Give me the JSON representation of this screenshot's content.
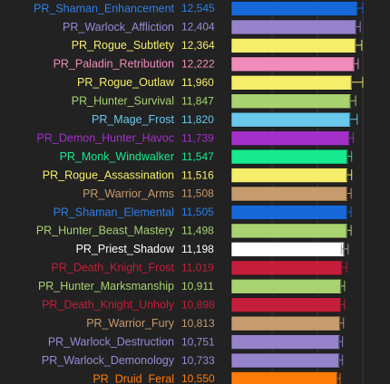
{
  "chart_data": {
    "type": "bar",
    "orientation": "horizontal",
    "grid": true,
    "title": "",
    "xlabel": "",
    "ylabel": "",
    "xlim": [
      0,
      13000
    ],
    "categories": [
      "PR_Shaman_Enhancement",
      "PR_Warlock_Affliction",
      "PR_Rogue_Subtlety",
      "PR_Paladin_Retribution",
      "PR_Rogue_Outlaw",
      "PR_Hunter_Survival",
      "PR_Mage_Frost",
      "PR_Demon_Hunter_Havoc",
      "PR_Monk_Windwalker",
      "PR_Rogue_Assassination",
      "PR_Warrior_Arms",
      "PR_Shaman_Elemental",
      "PR_Hunter_Beast_Mastery",
      "PR_Priest_Shadow",
      "PR_Death_Knight_Frost",
      "PR_Hunter_Marksmanship",
      "PR_Death_Knight_Unholy",
      "PR_Warrior_Fury",
      "PR_Warlock_Destruction",
      "PR_Warlock_Demonology",
      "PR_Druid_Feral"
    ],
    "value_labels": [
      "12,545",
      "12,404",
      "12,364",
      "12,222",
      "11,960",
      "11,847",
      "11,820",
      "11,739",
      "11,547",
      "11,516",
      "11,508",
      "11,505",
      "11,498",
      "11,198",
      "11,019",
      "10,911",
      "10,898",
      "10,813",
      "10,751",
      "10,733",
      "10,550"
    ],
    "values": [
      12545,
      12404,
      12364,
      12222,
      11960,
      11847,
      11820,
      11739,
      11547,
      11516,
      11508,
      11505,
      11498,
      11198,
      11019,
      10911,
      10898,
      10813,
      10751,
      10733,
      10550
    ],
    "error_low": [
      12000,
      11880,
      11820,
      11740,
      11380,
      11380,
      11300,
      11390,
      11250,
      11220,
      11250,
      11250,
      11280,
      10880,
      10720,
      10600,
      10660,
      10580,
      10500,
      10480,
      10280
    ],
    "error_high": [
      13000,
      12750,
      12900,
      12550,
      13000,
      12300,
      12450,
      12050,
      11900,
      11900,
      11850,
      11850,
      11850,
      11550,
      11400,
      11200,
      11200,
      11100,
      11000,
      11000,
      10750
    ],
    "colors": [
      "#1768d8",
      "#9583cc",
      "#f5ee6a",
      "#f08cba",
      "#f5ee6a",
      "#a9d271",
      "#69c8ec",
      "#a330c9",
      "#16e98e",
      "#f5ee6a",
      "#c69b6d",
      "#1768d8",
      "#a9d271",
      "#ffffff",
      "#c41e3a",
      "#a9d271",
      "#c41e3a",
      "#c69b6d",
      "#9583cc",
      "#9583cc",
      "#ff7c0a"
    ],
    "label_colors": [
      "#2e7fe8",
      "#9a8ad6",
      "#f5ee6a",
      "#f08cba",
      "#f5ee6a",
      "#a9d271",
      "#69c8ec",
      "#a330c9",
      "#16e98e",
      "#f5ee6a",
      "#c69b6d",
      "#2e7fe8",
      "#a9d271",
      "#ffffff",
      "#c41e3a",
      "#a9d271",
      "#c41e3a",
      "#c69b6d",
      "#9a8ad6",
      "#9a8ad6",
      "#ff7c0a"
    ]
  }
}
